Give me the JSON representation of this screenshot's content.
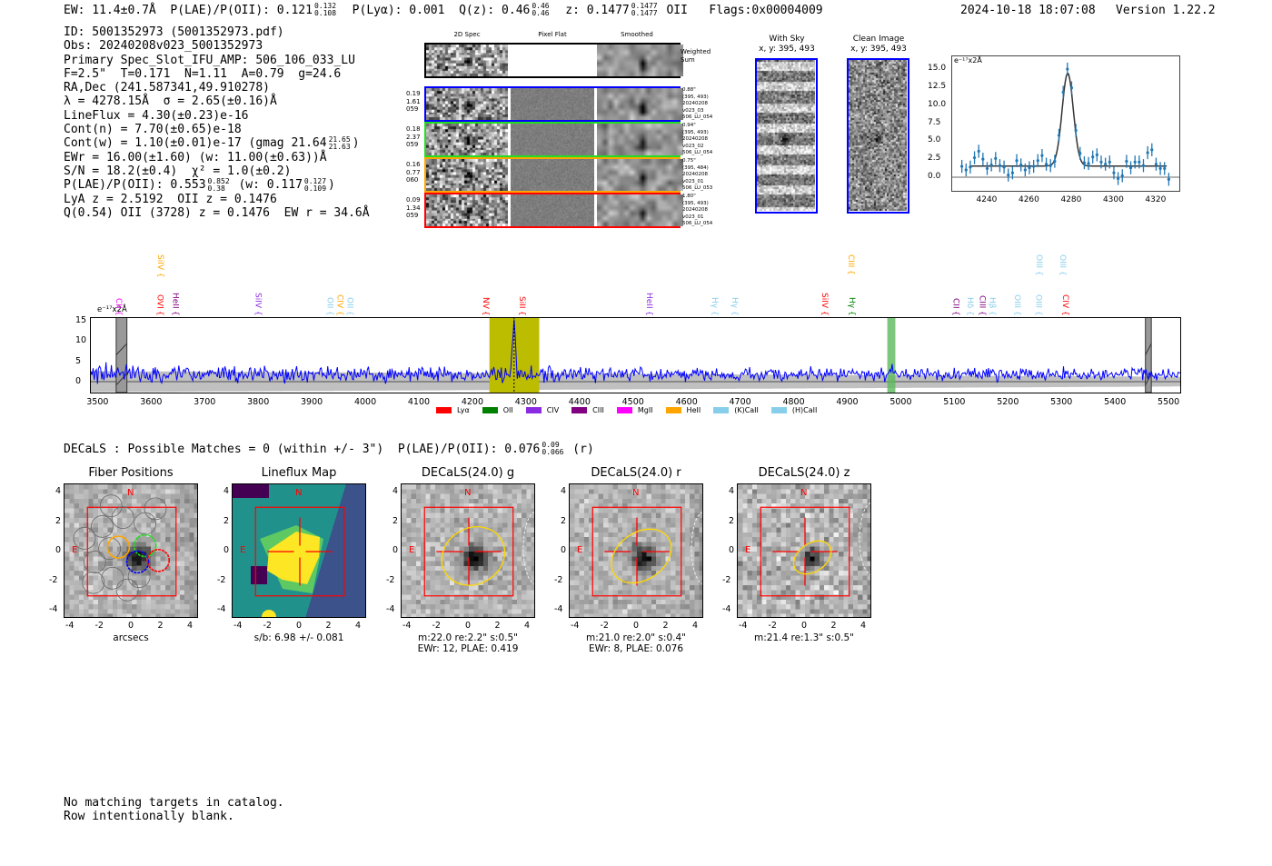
{
  "header": {
    "segments": [
      {
        "t": "EW: 11.4±0.7Å  P(LAE)/P(OII): 0.121"
      },
      {
        "hi": "0.132",
        "lo": "0.108"
      },
      {
        "t": "  P(Lyα): 0.001  Q(z): 0.46"
      },
      {
        "hi": "0.46",
        "lo": "0.46"
      },
      {
        "t": "  z: 0.1477"
      },
      {
        "hi": "0.1477",
        "lo": "0.1477"
      },
      {
        "t": " OII   Flags:0x00004009"
      }
    ],
    "timestamp": "2024-10-18 18:07:08",
    "version": "Version 1.22.2"
  },
  "info_lines": [
    [
      {
        "t": "ID: 5001352973 (5001352973.pdf)"
      }
    ],
    [
      {
        "t": "Obs: 20240208v023_5001352973"
      }
    ],
    [
      {
        "t": "Primary Spec_Slot_IFU_AMP: 506_106_033_LU"
      }
    ],
    [
      {
        "t": "F=2.5\"  T=0.171  N=1.11  A=0.79  g=24.6"
      }
    ],
    [
      {
        "t": "RA,Dec (241.587341,49.910278)"
      }
    ],
    [
      {
        "t": "λ = 4278.15Å  σ = 2.65(±0.16)Å"
      }
    ],
    [
      {
        "t": "LineFlux = 4.30(±0.23)e-16"
      }
    ],
    [
      {
        "t": "Cont(n) = 7.70(±0.65)e-18"
      }
    ],
    [
      {
        "t": "Cont(w) = 1.10(±0.01)e-17 (gmag 21.64"
      },
      {
        "hi": "21.65",
        "lo": "21.63"
      },
      {
        "t": ")"
      }
    ],
    [
      {
        "t": "EWr = 16.00(±1.60) (w: 11.00(±0.63))Å"
      }
    ],
    [
      {
        "t": "S/N = 18.2(±0.4)  χ² = 1.0(±0.2)"
      }
    ],
    [
      {
        "t": "P(LAE)/P(OII): 0.553"
      },
      {
        "hi": "0.852",
        "lo": "0.38"
      },
      {
        "t": " (w: 0.117"
      },
      {
        "hi": "0.127",
        "lo": "0.109"
      },
      {
        "t": ")"
      }
    ],
    [
      {
        "t": "LyA z = 2.5192  OII z = 0.1476"
      }
    ],
    [
      {
        "t": "Q(0.54) OII (3728) z = 0.1476  EW r = 34.6Å"
      }
    ]
  ],
  "spec2d": {
    "columns": [
      "2D Spec",
      "Pixel Flat",
      "Smoothed"
    ],
    "sum_label": "Weighted Sum",
    "rows": [
      {
        "color": "#0000ff",
        "left": [
          "0.19",
          "1.61",
          "059"
        ],
        "right": [
          "0.88\"",
          "(395, 493)",
          "20240208",
          "v023_03",
          "506_LU_054"
        ]
      },
      {
        "color": "#22dd22",
        "left": [
          "0.18",
          "2.37",
          "059"
        ],
        "right": [
          "0.94\"",
          "(395, 493)",
          "20240208",
          "v023_02",
          "506_LU_054"
        ]
      },
      {
        "color": "#ffa500",
        "left": [
          "0.16",
          "0.77",
          "060"
        ],
        "right": [
          "0.75\"",
          "(395, 484)",
          "20240208",
          "v023_01",
          "506_LU_053"
        ]
      },
      {
        "color": "#ff0000",
        "left": [
          "0.09",
          "1.34",
          "059"
        ],
        "right": [
          "1.80\"",
          "(395, 493)",
          "20240208",
          "v023_01",
          "506_LU_054"
        ]
      }
    ]
  },
  "stamps": [
    {
      "title": "With Sky",
      "subtitle": "x, y: 395, 493"
    },
    {
      "title": "Clean Image",
      "subtitle": "x, y: 395, 493"
    }
  ],
  "chart_data": [
    {
      "type": "scatter",
      "name": "line-zoom",
      "ylabel": "e⁻¹⁷x2Å",
      "xlim": [
        4223,
        4331
      ],
      "ylim": [
        -1.9,
        16.9
      ],
      "xticks": [
        4240,
        4260,
        4280,
        4300,
        4320
      ],
      "yticks": [
        "0.0",
        "2.5",
        "5.0",
        "7.5",
        "10.0",
        "12.5",
        "15.0"
      ],
      "x": [
        4228,
        4230,
        4232,
        4234,
        4236,
        4238,
        4240,
        4242,
        4244,
        4246,
        4248,
        4250,
        4252,
        4254,
        4256,
        4258,
        4260,
        4262,
        4264,
        4266,
        4268,
        4270,
        4272,
        4274,
        4276,
        4278,
        4280,
        4282,
        4284,
        4286,
        4288,
        4290,
        4292,
        4294,
        4296,
        4298,
        4300,
        4302,
        4304,
        4306,
        4308,
        4310,
        4312,
        4314,
        4316,
        4318,
        4320,
        4322,
        4324,
        4326
      ],
      "y": [
        1.5,
        1.0,
        1.4,
        2.7,
        3.6,
        2.5,
        1.2,
        1.7,
        2.6,
        1.6,
        1.4,
        0.3,
        0.6,
        2.3,
        1.7,
        1.0,
        1.3,
        1.5,
        2.3,
        3.0,
        1.8,
        1.6,
        2.2,
        5.8,
        11.8,
        15.0,
        12.4,
        6.5,
        3.3,
        2.0,
        1.9,
        2.8,
        3.1,
        2.1,
        1.8,
        2.1,
        0.6,
        -0.2,
        0.2,
        2.2,
        1.3,
        2.1,
        2.1,
        1.6,
        3.4,
        3.8,
        1.8,
        1.2,
        1.2,
        -0.3
      ],
      "yerr": 0.9,
      "fit": {
        "center": 4278.15,
        "sigma": 2.65,
        "amplitude": 12.9,
        "continuum": 1.55,
        "range": [
          4232,
          4325
        ]
      }
    },
    {
      "type": "line",
      "name": "full-spectrum",
      "ylabel": "e⁻¹⁷x2Å",
      "xlim": [
        3486,
        5522
      ],
      "ylim": [
        -2.7,
        15.9
      ],
      "xticks": [
        3500,
        3600,
        3700,
        3800,
        3900,
        4000,
        4100,
        4200,
        4300,
        4400,
        4500,
        4600,
        4700,
        4800,
        4900,
        5000,
        5100,
        5200,
        5300,
        5400,
        5500
      ],
      "yticks": [
        0,
        5,
        10,
        15
      ],
      "continuum": 1.8,
      "emission_lines": [
        {
          "center": 4278,
          "sigma": 2.65,
          "amplitude": 13
        },
        {
          "center": 4982,
          "sigma": 2.5,
          "amplitude": 2
        }
      ],
      "highlight_regions": [
        {
          "range": [
            4232,
            4325
          ],
          "color": "#bcbc00"
        },
        {
          "range": [
            4975,
            4990
          ],
          "color": "#5cb85c"
        }
      ],
      "masked_regions": [
        [
          3535,
          3555
        ],
        [
          5457,
          5468
        ]
      ],
      "line_markers": [
        {
          "label": "CII",
          "wave": 3537,
          "color": "#ff00ff",
          "row": 1
        },
        {
          "label": "SiIV",
          "wave": 3615,
          "color": "#ffa500",
          "row": 0
        },
        {
          "label": "OVI",
          "wave": 3614,
          "color": "#ff0000",
          "row": 1
        },
        {
          "label": "HeII",
          "wave": 3643,
          "color": "#800080",
          "row": 1
        },
        {
          "label": "SiIV",
          "wave": 3797,
          "color": "#8a2be2",
          "row": 1
        },
        {
          "label": "OII",
          "wave": 3931,
          "color": "#87ceeb",
          "row": 1
        },
        {
          "label": "CIV",
          "wave": 3950,
          "color": "#ffa500",
          "row": 1
        },
        {
          "label": "OII",
          "wave": 3961,
          "color": "#87ceeb",
          "row": 1
        },
        {
          "label": "NV",
          "wave": 4222,
          "color": "#ff0000",
          "row": 1
        },
        {
          "label": "SiII",
          "wave": 4290,
          "color": "#ff0000",
          "row": 1
        },
        {
          "label": "HeII",
          "wave": 4528,
          "color": "#8a2be2",
          "row": 1
        },
        {
          "label": "Hγ",
          "wave": 4650,
          "color": "#87ceeb",
          "row": 1
        },
        {
          "label": "Hγ",
          "wave": 4687,
          "color": "#87ceeb",
          "row": 1
        },
        {
          "label": "SiIV",
          "wave": 4855,
          "color": "#ff0000",
          "row": 1
        },
        {
          "label": "CIII",
          "wave": 4904,
          "color": "#ffa500",
          "row": 0
        },
        {
          "label": "Hγ",
          "wave": 4906,
          "color": "#008000",
          "row": 1
        },
        {
          "label": "CII",
          "wave": 5100,
          "color": "#800080",
          "row": 1
        },
        {
          "label": "Hδ",
          "wave": 5127,
          "color": "#87ceeb",
          "row": 1
        },
        {
          "label": "CIII",
          "wave": 5150,
          "color": "#800080",
          "row": 1
        },
        {
          "label": "Hβ",
          "wave": 5164,
          "color": "#87ceeb",
          "row": 1
        },
        {
          "label": "OIII",
          "wave": 5215,
          "color": "#87ceeb",
          "row": 1
        },
        {
          "label": "OIII",
          "wave": 5255,
          "color": "#87ceeb",
          "row": 1
        },
        {
          "label": "OIII",
          "wave": 5256,
          "color": "#87ceeb",
          "row": 0
        },
        {
          "label": "OIII",
          "wave": 5300,
          "color": "#87ceeb",
          "row": 0
        },
        {
          "label": "CIV",
          "wave": 5305,
          "color": "#ff0000",
          "row": 1
        }
      ],
      "legend": [
        {
          "label": "Lyα",
          "color": "#ff0000"
        },
        {
          "label": "OII",
          "color": "#008000"
        },
        {
          "label": "CIV",
          "color": "#8a2be2"
        },
        {
          "label": "CIII",
          "color": "#800080"
        },
        {
          "label": "MgII",
          "color": "#ff00ff"
        },
        {
          "label": "HeII",
          "color": "#ffa500"
        },
        {
          "label": "(K)CaII",
          "color": "#87ceeb"
        },
        {
          "label": "(H)CaII",
          "color": "#87ceeb"
        }
      ]
    }
  ],
  "decals": {
    "summary": "DECaLS : Possible Matches = 0 (within +/- 3\")  P(LAE)/P(OII): 0.076",
    "summary_hi": "0.09",
    "summary_lo": "0.066",
    "summary_tail": " (r)",
    "ticks": [
      "-4",
      "-2",
      "0",
      "2",
      "4"
    ],
    "north": "N",
    "east": "E",
    "panels": [
      {
        "title": "Fiber Positions",
        "captions": [
          "arcsecs"
        ]
      },
      {
        "title": "Lineflux Map",
        "captions": [
          "s/b: 6.98 +/- 0.081"
        ]
      },
      {
        "title": "DECaLS(24.0) g",
        "captions": [
          "m:22.0  re:2.2\"  s:0.5\"",
          "EWr: 12, PLAE: 0.419"
        ]
      },
      {
        "title": "DECaLS(24.0) r",
        "captions": [
          "m:21.0  re:2.0\"  s:0.4\"",
          "EWr: 8, PLAE: 0.076"
        ]
      },
      {
        "title": "DECaLS(24.0) z",
        "captions": [
          "m:21.4  re:1.3\"  s:0.5\""
        ]
      }
    ]
  },
  "footer": [
    "No matching targets in catalog.",
    "Row intentionally blank."
  ]
}
